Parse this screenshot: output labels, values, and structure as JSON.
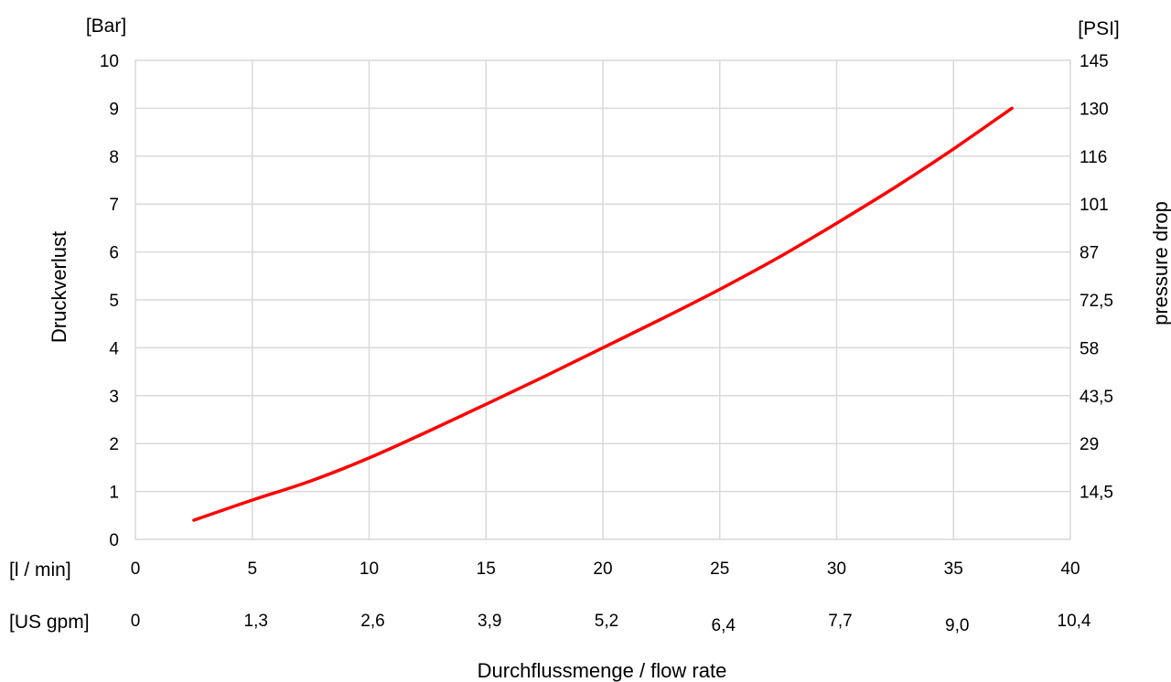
{
  "chart_data": {
    "type": "line",
    "x_unit_label": "[l / min]",
    "x2_unit_label": "[US gpm]",
    "x_title": "Durchflussmenge / flow rate",
    "x_ticks": [
      "0",
      "5",
      "10",
      "15",
      "20",
      "25",
      "30",
      "35",
      "40"
    ],
    "x_ticks_secondary": [
      "0",
      "1,3",
      "2,6",
      "3,9",
      "5,2",
      "6,4",
      "7,7",
      "9,0",
      "10,4"
    ],
    "xlim": [
      0,
      40
    ],
    "y_unit_label": "[Bar]",
    "y_title": "Druckverlust",
    "y_ticks": [
      "0",
      "1",
      "2",
      "3",
      "4",
      "5",
      "6",
      "7",
      "8",
      "9",
      "10"
    ],
    "ylim": [
      0,
      10
    ],
    "y2_unit_label": "[PSI]",
    "y2_title": "pressure drop",
    "y2_ticks": [
      "",
      "14,5",
      "29",
      "43,5",
      "58",
      "72,5",
      "87",
      "101",
      "116",
      "130",
      "145"
    ],
    "grid": true,
    "series": [
      {
        "color": "#ff0000",
        "x": [
          2.5,
          5,
          7.5,
          10,
          12.5,
          15,
          17.5,
          20,
          22.5,
          25,
          27.5,
          30,
          32.5,
          35,
          37.5
        ],
        "y": [
          0.4,
          0.82,
          1.22,
          1.7,
          2.25,
          2.82,
          3.4,
          4.0,
          4.6,
          5.22,
          5.88,
          6.6,
          7.35,
          8.15,
          9.0
        ]
      }
    ]
  }
}
